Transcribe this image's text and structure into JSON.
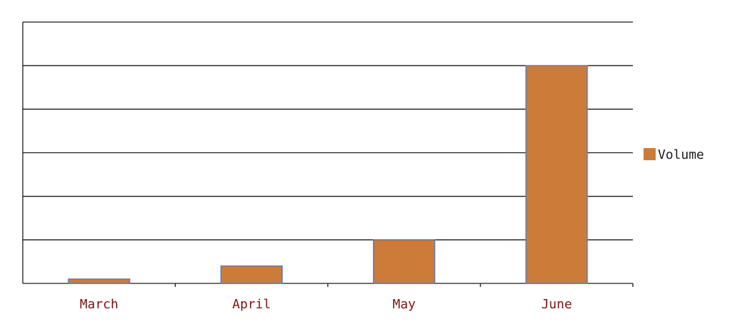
{
  "chart_data": {
    "type": "bar",
    "categories": [
      "March",
      "April",
      "May",
      "June"
    ],
    "series": [
      {
        "name": "Volume",
        "values": [
          1,
          4,
          10,
          50
        ],
        "color": "#cd7b39"
      }
    ],
    "ylim": [
      0,
      60
    ],
    "grid": true,
    "legend_position": "right",
    "xlabel": "",
    "ylabel": ""
  }
}
